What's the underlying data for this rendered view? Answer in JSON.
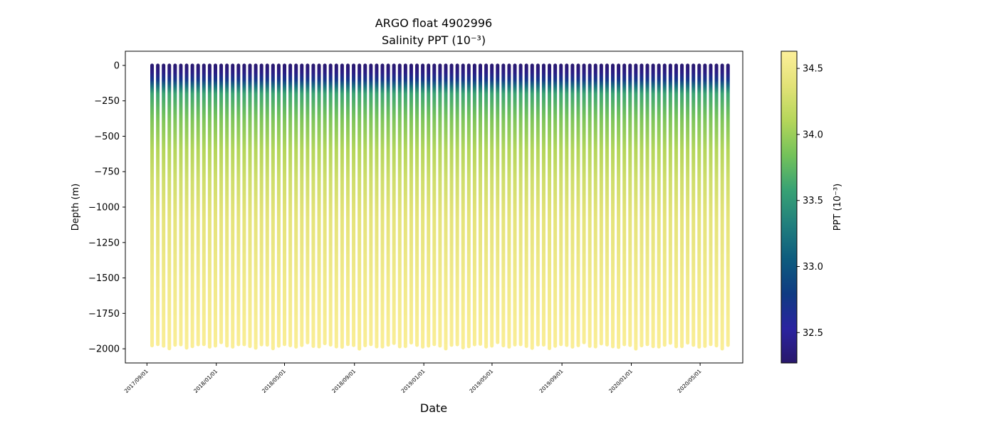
{
  "chart_data": {
    "type": "scatter",
    "title_line1": "ARGO float 4902996",
    "title_line2": "Salinity PPT (10⁻³)",
    "xlabel": "Date",
    "ylabel": "Depth (m)",
    "colorbar_label": "PPT (10⁻³)",
    "x_range": [
      "2017-07-25",
      "2020-07-15"
    ],
    "ylim": [
      -2100,
      100
    ],
    "y_ticks": [
      0,
      -250,
      -500,
      -750,
      -1000,
      -1250,
      -1500,
      -1750,
      -2000
    ],
    "y_tick_labels": [
      "0",
      "−250",
      "−500",
      "−750",
      "−1000",
      "−1250",
      "−1500",
      "−1750",
      "−2000"
    ],
    "x_ticks": [
      "2017-09-01",
      "2018-01-01",
      "2018-05-01",
      "2018-09-01",
      "2019-01-01",
      "2019-05-01",
      "2019-09-01",
      "2020-01-01",
      "2020-05-01"
    ],
    "x_tick_labels": [
      "2017/09/01",
      "2018/01/01",
      "2018/05/01",
      "2018/09/01",
      "2019/01/01",
      "2019/05/01",
      "2019/09/01",
      "2020/01/01",
      "2020/05/01"
    ],
    "profiles": {
      "first_date": "2017-09-10",
      "last_date": "2020-06-19",
      "count": 101,
      "surface_depth": 0,
      "max_depth_min": -2000,
      "max_depth_max": -1955
    },
    "salinity_profile": [
      {
        "depth": 0,
        "value": 32.3
      },
      {
        "depth": -80,
        "value": 32.45
      },
      {
        "depth": -120,
        "value": 33.0
      },
      {
        "depth": -200,
        "value": 33.6
      },
      {
        "depth": -400,
        "value": 33.9
      },
      {
        "depth": -600,
        "value": 34.1
      },
      {
        "depth": -800,
        "value": 34.25
      },
      {
        "depth": -1100,
        "value": 34.4
      },
      {
        "depth": -1500,
        "value": 34.5
      },
      {
        "depth": -2000,
        "value": 34.6
      }
    ],
    "colorbar": {
      "vmin": 32.27,
      "vmax": 34.63,
      "ticks": [
        32.5,
        33.0,
        33.5,
        34.0,
        34.5
      ],
      "tick_labels": [
        "32.5",
        "33.0",
        "33.5",
        "34.0",
        "34.5"
      ],
      "colormap": "haline",
      "colormap_stops": [
        "#29186b",
        "#2a23a0",
        "#0f3b82",
        "#0e5c7e",
        "#217f7d",
        "#38a274",
        "#74c25a",
        "#b5d65a",
        "#e2e277",
        "#fdef9a"
      ]
    },
    "grid": false,
    "legend": "none"
  }
}
